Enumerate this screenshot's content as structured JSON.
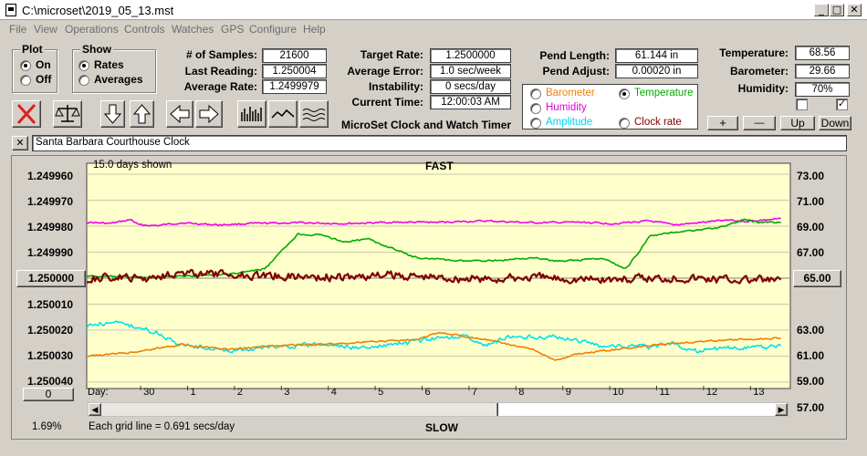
{
  "window": {
    "title": "C:\\microset\\2019_05_13.mst"
  },
  "title_buttons": {
    "minimize": "_",
    "maximize": "□",
    "close": "✕"
  },
  "menu": [
    "File",
    "View",
    "Operations",
    "Controls",
    "Watches",
    "GPS",
    "Configure",
    "Help"
  ],
  "plot_group": {
    "title": "Plot",
    "on": "On",
    "off": "Off",
    "selected": "On"
  },
  "show_group": {
    "title": "Show",
    "rates": "Rates",
    "averages": "Averages",
    "selected": "Rates"
  },
  "stats": {
    "samples_label": "# of Samples:",
    "samples": "21600",
    "last_reading_label": "Last Reading:",
    "last_reading": "1.250004",
    "average_rate_label": "Average Rate:",
    "average_rate": "1.2499979",
    "target_rate_label": "Target Rate:",
    "target_rate": "1.2500000",
    "average_error_label": "Average Error:",
    "average_error": "1.0 sec/week",
    "instability_label": "Instability:",
    "instability": "0 secs/day",
    "current_time_label": "Current Time:",
    "current_time": "12:00:03 AM",
    "pend_length_label": "Pend Length:",
    "pend_length": "61.144 in",
    "pend_adjust_label": "Pend Adjust:",
    "pend_adjust": "0.00020 in",
    "temperature_label": "Temperature:",
    "temperature": "68.56",
    "barometer_label": "Barometer:",
    "barometer": "29.66",
    "humidity_label": "Humidity:",
    "humidity": "70%"
  },
  "app_label": "MicroSet Clock and Watch Timer",
  "aux_options": {
    "barometer": "Barometer",
    "temperature": "Temperature",
    "humidity": "Humidity",
    "amplitude": "Amplitude",
    "clock_rate": "Clock rate",
    "selected": "Temperature"
  },
  "aux_buttons": {
    "plus": "+",
    "minus": "—",
    "up": "Up",
    "down": "Down"
  },
  "checkboxes": {
    "left_checked": false,
    "right_checked": true,
    "check_mark": "✓"
  },
  "description": {
    "close": "✕",
    "value": "Santa Barbara Courthouse Clock"
  },
  "plot": {
    "days_shown": "15.0 days shown",
    "fast_label": "FAST",
    "slow_label": "SLOW",
    "rate_axis_button": "1.250000",
    "aux_axis_button": "65.00",
    "zero_button": "0",
    "percent": "1.69%",
    "grid_note": "Each grid line = 0.691 secs/day",
    "day_label": "Day:"
  },
  "colors": {
    "plot_bg": "#ffffcc",
    "rate": "#800000",
    "temperature": "#00aa00",
    "humidity": "#ee00ee",
    "amplitude": "#00e0f0",
    "barometer": "#f08000"
  },
  "chart_data": {
    "type": "line",
    "title": "",
    "xlabel": "Day",
    "x_tick_labels": [
      "30",
      "1",
      "2",
      "3",
      "4",
      "5",
      "6",
      "7",
      "8",
      "9",
      "10",
      "11",
      "12",
      "13"
    ],
    "left_axis": {
      "ticks": [
        "1.249960",
        "1.249970",
        "1.249980",
        "1.249990",
        "1.250000",
        "1.250010",
        "1.250020",
        "1.250030",
        "1.250040"
      ],
      "range": [
        1.24996,
        1.25004
      ],
      "direction": "descending"
    },
    "right_axis": {
      "ticks": [
        "73.00",
        "71.00",
        "69.00",
        "67.00",
        "65.00",
        "63.00",
        "61.00",
        "59.00",
        "57.00"
      ],
      "range": [
        57,
        73
      ]
    },
    "x_range": [
      0,
      15
    ],
    "series": [
      {
        "key": "humidity",
        "color": "#ee00ee",
        "axis": "left",
        "jitter": 3e-07,
        "points": [
          [
            0,
            1.2499785
          ],
          [
            0.5,
            1.249979
          ],
          [
            0.95,
            1.2499775
          ],
          [
            1.1,
            1.2499795
          ],
          [
            1.5,
            1.2499798
          ],
          [
            2,
            1.2499787
          ],
          [
            2.8,
            1.2499795
          ],
          [
            3.5,
            1.249979
          ],
          [
            4.5,
            1.2499787
          ],
          [
            5.5,
            1.249979
          ],
          [
            6.5,
            1.2499785
          ],
          [
            7.5,
            1.2499785
          ],
          [
            8.5,
            1.249978
          ],
          [
            9.5,
            1.2499787
          ],
          [
            10.5,
            1.2499785
          ],
          [
            11.2,
            1.249979
          ],
          [
            12,
            1.249978
          ],
          [
            12.5,
            1.2499795
          ],
          [
            13,
            1.2499788
          ],
          [
            13.7,
            1.2499775
          ],
          [
            14,
            1.2499782
          ],
          [
            14.8,
            1.2499772
          ]
        ]
      },
      {
        "key": "temperature",
        "color": "#00aa00",
        "axis": "left",
        "jitter": 3e-07,
        "points": [
          [
            0,
            1.2499992
          ],
          [
            0.8,
            1.2499995
          ],
          [
            1.5,
            1.2499998
          ],
          [
            2,
            1.2499993
          ],
          [
            3,
            1.2499985
          ],
          [
            3.8,
            1.2499965
          ],
          [
            4.5,
            1.249983
          ],
          [
            5,
            1.2499835
          ],
          [
            5.5,
            1.249986
          ],
          [
            6,
            1.249985
          ],
          [
            7,
            1.249992
          ],
          [
            8,
            1.2499935
          ],
          [
            9,
            1.249993
          ],
          [
            9.5,
            1.249992
          ],
          [
            10,
            1.2499935
          ],
          [
            11,
            1.2499925
          ],
          [
            11.5,
            1.2499965
          ],
          [
            12,
            1.249984
          ],
          [
            12.5,
            1.2499823
          ],
          [
            13,
            1.2499815
          ],
          [
            13.5,
            1.2499805
          ],
          [
            14,
            1.2499775
          ],
          [
            14.3,
            1.2499785
          ],
          [
            14.8,
            1.2499785
          ]
        ]
      },
      {
        "key": "rate",
        "color": "#800000",
        "axis": "left",
        "jitter": 1.5e-06,
        "points": [
          [
            0,
            1.2500003
          ],
          [
            0.6,
            1.2499997
          ],
          [
            1.2,
            1.2500003
          ],
          [
            1.8,
            1.249998
          ],
          [
            2.5,
            1.2499985
          ],
          [
            3.5,
            1.2499988
          ],
          [
            4.5,
            1.2499993
          ],
          [
            5.5,
            1.2499997
          ],
          [
            6.5,
            1.2499988
          ],
          [
            7.5,
            1.2499997
          ],
          [
            8.5,
            1.2500005
          ],
          [
            9.5,
            1.2499997
          ],
          [
            10.5,
            1.2500003
          ],
          [
            11.5,
            1.2500005
          ],
          [
            12.5,
            1.2499997
          ],
          [
            13.5,
            1.2500003
          ],
          [
            14.8,
            1.250001
          ]
        ]
      },
      {
        "key": "amplitude",
        "color": "#00e0f0",
        "axis": "left",
        "jitter": 8e-07,
        "points": [
          [
            0,
            1.2500185
          ],
          [
            0.5,
            1.250017
          ],
          [
            1,
            1.2500185
          ],
          [
            1.5,
            1.250021
          ],
          [
            2,
            1.2500255
          ],
          [
            3,
            1.250028
          ],
          [
            4,
            1.2500265
          ],
          [
            5,
            1.2500255
          ],
          [
            6,
            1.250027
          ],
          [
            7,
            1.2500245
          ],
          [
            8,
            1.250022
          ],
          [
            8.5,
            1.250026
          ],
          [
            9,
            1.2500225
          ],
          [
            10,
            1.2500225
          ],
          [
            11,
            1.250026
          ],
          [
            12,
            1.2500265
          ],
          [
            12.5,
            1.250025
          ],
          [
            13,
            1.250028
          ],
          [
            13.8,
            1.2500265
          ],
          [
            14.8,
            1.2500265
          ]
        ]
      },
      {
        "key": "barometer",
        "color": "#f08000",
        "axis": "left",
        "jitter": 3e-07,
        "points": [
          [
            0,
            1.25003
          ],
          [
            1,
            1.2500285
          ],
          [
            2,
            1.2500255
          ],
          [
            3,
            1.2500275
          ],
          [
            4,
            1.250026
          ],
          [
            5,
            1.2500255
          ],
          [
            6,
            1.2500245
          ],
          [
            7,
            1.2500235
          ],
          [
            7.5,
            1.250021
          ],
          [
            8.5,
            1.2500235
          ],
          [
            9.5,
            1.2500275
          ],
          [
            10,
            1.2500315
          ],
          [
            10.5,
            1.250029
          ],
          [
            11.5,
            1.250027
          ],
          [
            12.5,
            1.250025
          ],
          [
            13.5,
            1.250024
          ],
          [
            14.8,
            1.250023
          ]
        ]
      }
    ]
  }
}
